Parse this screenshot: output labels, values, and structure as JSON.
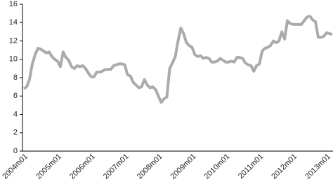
{
  "chart_data": {
    "type": "line",
    "categories": [
      "2004m01",
      null,
      null,
      null,
      null,
      null,
      null,
      null,
      null,
      null,
      null,
      null,
      "2005m01",
      null,
      null,
      null,
      null,
      null,
      null,
      null,
      null,
      null,
      null,
      null,
      "2006m01",
      null,
      null,
      null,
      null,
      null,
      null,
      null,
      null,
      null,
      null,
      null,
      "2007m01",
      null,
      null,
      null,
      null,
      null,
      null,
      null,
      null,
      null,
      null,
      null,
      "2008m01",
      null,
      null,
      null,
      null,
      null,
      null,
      null,
      null,
      null,
      null,
      null,
      "2009m01",
      null,
      null,
      null,
      null,
      null,
      null,
      null,
      null,
      null,
      null,
      null,
      "2010m01",
      null,
      null,
      null,
      null,
      null,
      null,
      null,
      null,
      null,
      null,
      null,
      "2011m01",
      null,
      null,
      null,
      null,
      null,
      null,
      null,
      null,
      null,
      null,
      null,
      "2012m01",
      null,
      null,
      null,
      null,
      null,
      null,
      null,
      null,
      null,
      null,
      null,
      "2013m01",
      null,
      null
    ],
    "values": [
      6.8,
      7.0,
      7.8,
      9.5,
      10.5,
      11.2,
      11.1,
      10.9,
      10.7,
      10.8,
      10.3,
      10.0,
      9.8,
      9.2,
      10.8,
      10.2,
      9.9,
      9.2,
      9.0,
      9.3,
      9.2,
      9.3,
      9.0,
      8.5,
      8.1,
      8.1,
      8.6,
      8.6,
      8.7,
      8.9,
      8.9,
      8.9,
      9.3,
      9.4,
      9.5,
      9.5,
      9.4,
      8.3,
      8.2,
      7.5,
      7.2,
      6.9,
      7.0,
      7.8,
      7.2,
      6.9,
      7.0,
      6.7,
      6.0,
      5.3,
      5.7,
      5.9,
      9.0,
      9.6,
      10.3,
      12.0,
      13.4,
      12.8,
      11.8,
      11.5,
      11.3,
      10.5,
      10.3,
      10.4,
      10.1,
      10.2,
      10.1,
      9.7,
      9.7,
      9.8,
      10.1,
      9.9,
      9.7,
      9.7,
      9.8,
      9.7,
      10.2,
      10.2,
      10.1,
      9.6,
      9.4,
      9.3,
      8.7,
      9.3,
      9.5,
      10.9,
      11.2,
      11.3,
      11.5,
      12.0,
      11.8,
      12.0,
      13.0,
      12.2,
      14.2,
      13.9,
      13.8,
      13.8,
      13.8,
      13.8,
      14.2,
      14.6,
      14.7,
      14.3,
      14.1,
      12.4,
      12.4,
      12.5,
      12.9,
      12.8,
      12.7
    ],
    "color": "#ababab",
    "ylim": [
      0,
      16
    ],
    "yticks": [
      0,
      2,
      4,
      6,
      8,
      10,
      12,
      14,
      16
    ]
  }
}
